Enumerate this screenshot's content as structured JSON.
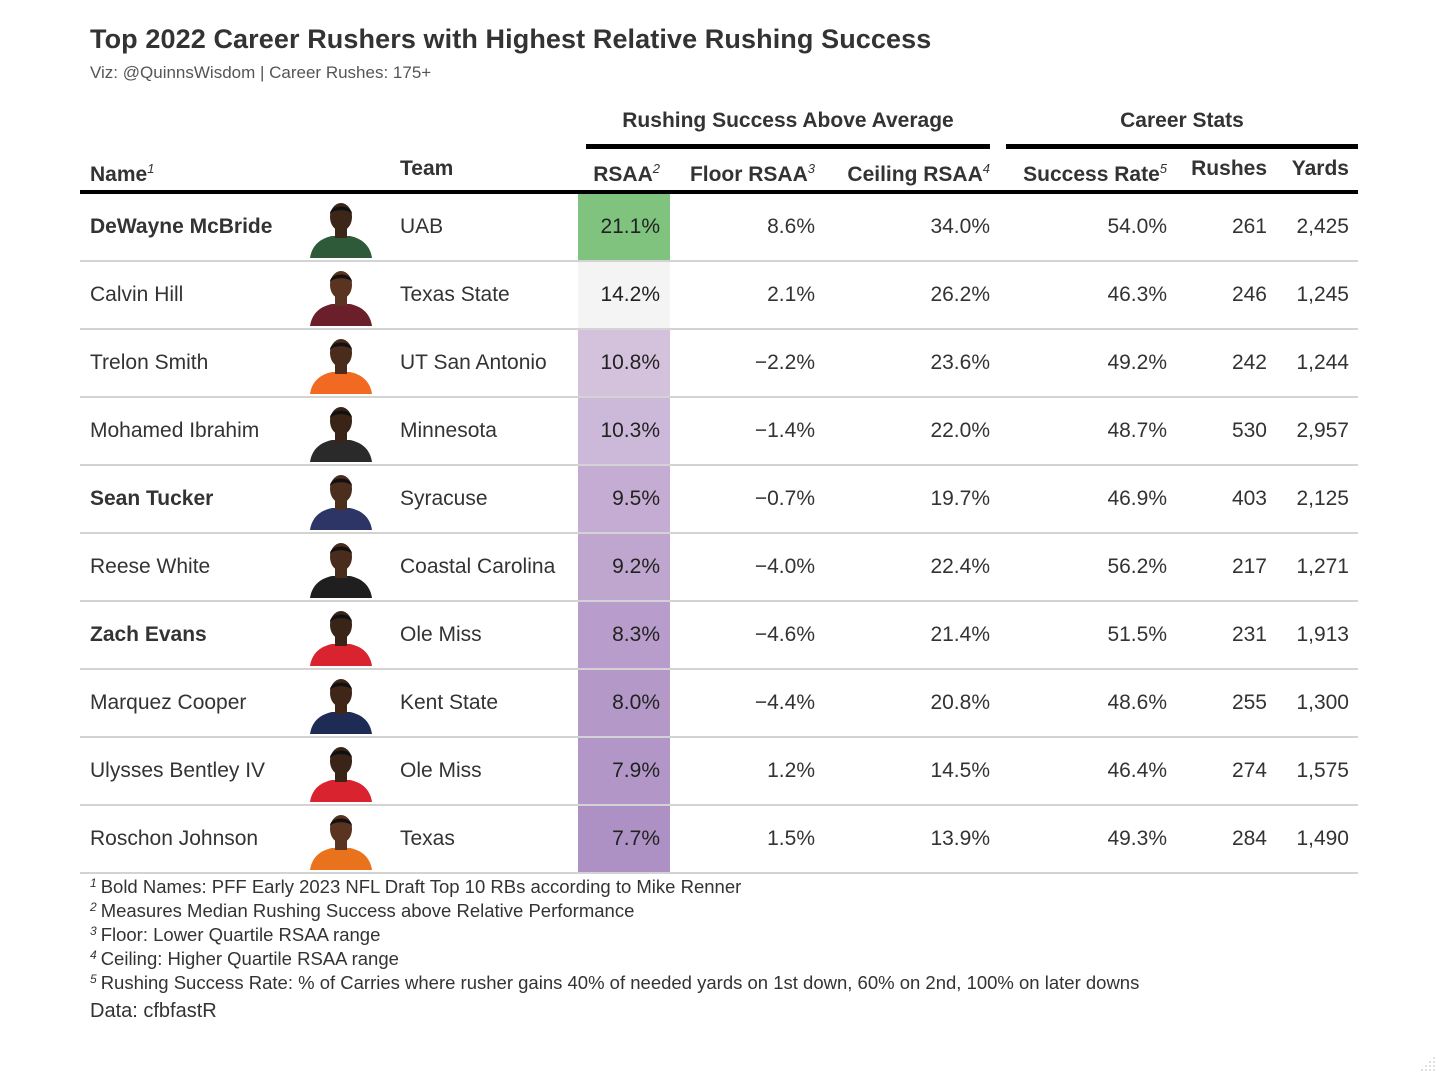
{
  "chart_data": {
    "type": "table",
    "title": "Top 2022 Career Rushers with Highest Relative Rushing Success",
    "subtitle": "Viz: @QuinnsWisdom | Career Rushes: 175+",
    "spanners": {
      "rsaa": "Rushing Success Above Average",
      "career": "Career Stats"
    },
    "columns": {
      "name": "Name",
      "name_sup": "1",
      "team": "Team",
      "rsaa": "RSAA",
      "rsaa_sup": "2",
      "floor": "Floor RSAA",
      "floor_sup": "3",
      "ceiling": "Ceiling RSAA",
      "ceiling_sup": "4",
      "success": "Success Rate",
      "success_sup": "5",
      "rushes": "Rushes",
      "yards": "Yards"
    },
    "rows": [
      {
        "name": "DeWayne McBride",
        "bold": true,
        "team": "UAB",
        "rsaa": "21.1%",
        "rsaa_value": 21.1,
        "rsaa_color": "#7fc37f",
        "floor": "8.6%",
        "ceiling": "34.0%",
        "success": "54.0%",
        "rushes": "261",
        "yards": "2,425",
        "jersey": "#2e5a3a",
        "skin": "#3b2618"
      },
      {
        "name": "Calvin Hill",
        "bold": false,
        "team": "Texas State",
        "rsaa": "14.2%",
        "rsaa_value": 14.2,
        "rsaa_color": "#f4f4f4",
        "floor": "2.1%",
        "ceiling": "26.2%",
        "success": "46.3%",
        "rushes": "246",
        "yards": "1,245",
        "jersey": "#6b1f2a",
        "skin": "#5a3420"
      },
      {
        "name": "Trelon Smith",
        "bold": false,
        "team": "UT San Antonio",
        "rsaa": "10.8%",
        "rsaa_value": 10.8,
        "rsaa_color": "#d4c2dd",
        "floor": "−2.2%",
        "ceiling": "23.6%",
        "success": "49.2%",
        "rushes": "242",
        "yards": "1,244",
        "jersey": "#f26a21",
        "skin": "#4a2c1c"
      },
      {
        "name": "Mohamed Ibrahim",
        "bold": false,
        "team": "Minnesota",
        "rsaa": "10.3%",
        "rsaa_value": 10.3,
        "rsaa_color": "#ccb8d8",
        "floor": "−1.4%",
        "ceiling": "22.0%",
        "success": "48.7%",
        "rushes": "530",
        "yards": "2,957",
        "jersey": "#2a2a2a",
        "skin": "#3a2418"
      },
      {
        "name": "Sean Tucker",
        "bold": true,
        "team": "Syracuse",
        "rsaa": "9.5%",
        "rsaa_value": 9.5,
        "rsaa_color": "#c4acd3",
        "floor": "−0.7%",
        "ceiling": "19.7%",
        "success": "46.9%",
        "rushes": "403",
        "yards": "2,125",
        "jersey": "#2c3566",
        "skin": "#4b2e1e"
      },
      {
        "name": "Reese White",
        "bold": false,
        "team": "Coastal Carolina",
        "rsaa": "9.2%",
        "rsaa_value": 9.2,
        "rsaa_color": "#bea6cf",
        "floor": "−4.0%",
        "ceiling": "22.4%",
        "success": "56.2%",
        "rushes": "217",
        "yards": "1,271",
        "jersey": "#1f1f1f",
        "skin": "#4a2c1c"
      },
      {
        "name": "Zach Evans",
        "bold": true,
        "team": "Ole Miss",
        "rsaa": "8.3%",
        "rsaa_value": 8.3,
        "rsaa_color": "#b89ccb",
        "floor": "−4.6%",
        "ceiling": "21.4%",
        "success": "51.5%",
        "rushes": "231",
        "yards": "1,913",
        "jersey": "#d9232e",
        "skin": "#3a2418"
      },
      {
        "name": "Marquez Cooper",
        "bold": false,
        "team": "Kent State",
        "rsaa": "8.0%",
        "rsaa_value": 8.0,
        "rsaa_color": "#b398c8",
        "floor": "−4.4%",
        "ceiling": "20.8%",
        "success": "48.6%",
        "rushes": "255",
        "yards": "1,300",
        "jersey": "#1e2c55",
        "skin": "#3f2619"
      },
      {
        "name": "Ulysses Bentley IV",
        "bold": false,
        "team": "Ole Miss",
        "rsaa": "7.9%",
        "rsaa_value": 7.9,
        "rsaa_color": "#b196c7",
        "floor": "1.2%",
        "ceiling": "14.5%",
        "success": "46.4%",
        "rushes": "274",
        "yards": "1,575",
        "jersey": "#d9232e",
        "skin": "#3a2418"
      },
      {
        "name": "Roschon Johnson",
        "bold": false,
        "team": "Texas",
        "rsaa": "7.7%",
        "rsaa_value": 7.7,
        "rsaa_color": "#ad91c4",
        "floor": "1.5%",
        "ceiling": "13.9%",
        "success": "49.3%",
        "rushes": "284",
        "yards": "1,490",
        "jersey": "#e8731c",
        "skin": "#5a3420"
      }
    ],
    "footnotes": [
      {
        "mark": "1",
        "text": "Bold Names: PFF Early 2023 NFL Draft Top 10 RBs according to Mike Renner"
      },
      {
        "mark": "2",
        "text": "Measures Median Rushing Success above Relative Performance"
      },
      {
        "mark": "3",
        "text": "Floor: Lower Quartile RSAA range"
      },
      {
        "mark": "4",
        "text": "Ceiling: Higher Quartile RSAA range"
      },
      {
        "mark": "5",
        "text": "Rushing Success Rate: % of Carries where rusher gains 40% of needed yards on 1st down, 60% on 2nd, 100% on later downs"
      }
    ],
    "source": "Data: cfbfastR"
  }
}
